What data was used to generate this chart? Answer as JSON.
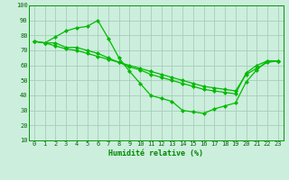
{
  "title": "",
  "xlabel": "Humidité relative (%)",
  "ylabel": "",
  "bg_color": "#cceedd",
  "grid_color": "#aaccbb",
  "line_color": "#00bb00",
  "marker": "D",
  "markersize": 2,
  "linewidth": 0.9,
  "xlim": [
    -0.5,
    23.5
  ],
  "ylim": [
    10,
    100
  ],
  "yticks": [
    10,
    20,
    30,
    40,
    50,
    60,
    70,
    80,
    90,
    100
  ],
  "xticks": [
    0,
    1,
    2,
    3,
    4,
    5,
    6,
    7,
    8,
    9,
    10,
    11,
    12,
    13,
    14,
    15,
    16,
    17,
    18,
    19,
    20,
    21,
    22,
    23
  ],
  "series": [
    [
      76,
      75,
      79,
      83,
      85,
      86,
      90,
      78,
      65,
      56,
      48,
      40,
      38,
      36,
      30,
      29,
      28,
      31,
      33,
      35,
      49,
      57,
      63,
      63
    ],
    [
      76,
      75,
      75,
      72,
      72,
      70,
      68,
      65,
      62,
      59,
      57,
      54,
      52,
      50,
      48,
      46,
      44,
      43,
      42,
      41,
      55,
      60,
      63,
      63
    ],
    [
      76,
      75,
      73,
      71,
      70,
      68,
      66,
      64,
      62,
      60,
      58,
      56,
      54,
      52,
      50,
      48,
      46,
      45,
      44,
      43,
      54,
      58,
      62,
      63
    ]
  ],
  "xlabel_fontsize": 6,
  "xlabel_color": "#008800",
  "tick_labelsize": 5,
  "tick_color": "#006600",
  "spine_color": "#009900"
}
